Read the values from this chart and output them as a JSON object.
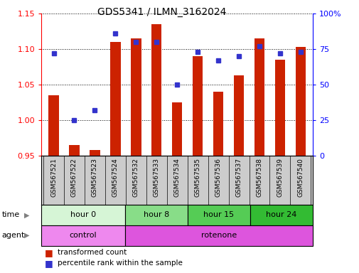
{
  "title": "GDS5341 / ILMN_3162024",
  "samples": [
    "GSM567521",
    "GSM567522",
    "GSM567523",
    "GSM567524",
    "GSM567532",
    "GSM567533",
    "GSM567534",
    "GSM567535",
    "GSM567536",
    "GSM567537",
    "GSM567538",
    "GSM567539",
    "GSM567540"
  ],
  "red_values": [
    1.035,
    0.965,
    0.958,
    1.11,
    1.115,
    1.135,
    1.025,
    1.09,
    1.04,
    1.063,
    1.115,
    1.085,
    1.103
  ],
  "blue_values": [
    72,
    25,
    32,
    86,
    80,
    80,
    50,
    73,
    67,
    70,
    77,
    72,
    73
  ],
  "ylim_left": [
    0.95,
    1.15
  ],
  "ylim_right": [
    0,
    100
  ],
  "yticks_left": [
    0.95,
    1.0,
    1.05,
    1.1,
    1.15
  ],
  "yticks_right": [
    0,
    25,
    50,
    75,
    100
  ],
  "ytick_labels_right": [
    "0",
    "25",
    "50",
    "75",
    "100%"
  ],
  "bar_color": "#cc2200",
  "dot_color": "#3333cc",
  "time_groups": [
    {
      "label": "hour 0",
      "start": 0,
      "end": 4,
      "color": "#d6f5d6"
    },
    {
      "label": "hour 8",
      "start": 4,
      "end": 7,
      "color": "#88dd88"
    },
    {
      "label": "hour 15",
      "start": 7,
      "end": 10,
      "color": "#55cc55"
    },
    {
      "label": "hour 24",
      "start": 10,
      "end": 13,
      "color": "#33bb33"
    }
  ],
  "agent_groups": [
    {
      "label": "control",
      "start": 0,
      "end": 4,
      "color": "#ee88ee"
    },
    {
      "label": "rotenone",
      "start": 4,
      "end": 13,
      "color": "#dd55dd"
    }
  ],
  "time_label": "time",
  "agent_label": "agent",
  "legend_red": "transformed count",
  "legend_blue": "percentile rank within the sample",
  "bar_bottom": 0.95,
  "xtick_bg": "#cccccc"
}
